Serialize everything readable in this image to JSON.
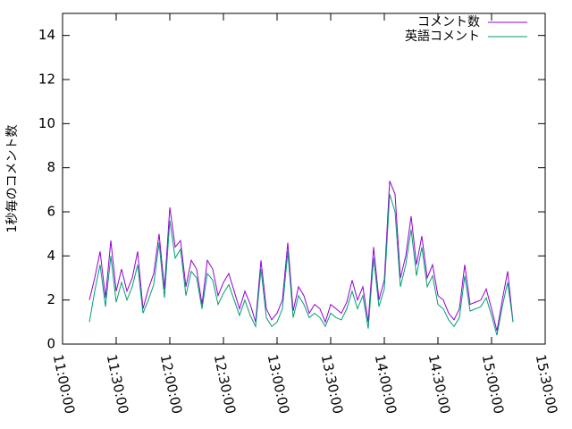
{
  "chart_data": {
    "type": "line",
    "y_label": "1秒毎のコメント数",
    "xlim": [
      "11:00:00",
      "15:30:00"
    ],
    "xticks": [
      "11:00:00",
      "11:30:00",
      "12:00:00",
      "12:30:00",
      "13:00:00",
      "13:30:00",
      "14:00:00",
      "14:30:00",
      "15:00:00",
      "15:30:00"
    ],
    "ylim": [
      0,
      15
    ],
    "yticks": [
      0,
      2,
      4,
      6,
      8,
      10,
      12,
      14
    ],
    "grid": false,
    "legend": "top-right",
    "x": [
      "11:15:00",
      "11:18:00",
      "11:21:00",
      "11:24:00",
      "11:27:00",
      "11:30:00",
      "11:33:00",
      "11:36:00",
      "11:39:00",
      "11:42:00",
      "11:45:00",
      "11:48:00",
      "11:51:00",
      "11:54:00",
      "11:57:00",
      "12:00:00",
      "12:03:00",
      "12:06:00",
      "12:09:00",
      "12:12:00",
      "12:15:00",
      "12:18:00",
      "12:21:00",
      "12:24:00",
      "12:27:00",
      "12:30:00",
      "12:33:00",
      "12:36:00",
      "12:39:00",
      "12:42:00",
      "12:45:00",
      "12:48:00",
      "12:51:00",
      "12:54:00",
      "12:57:00",
      "13:00:00",
      "13:03:00",
      "13:06:00",
      "13:09:00",
      "13:12:00",
      "13:15:00",
      "13:18:00",
      "13:21:00",
      "13:24:00",
      "13:27:00",
      "13:30:00",
      "13:33:00",
      "13:36:00",
      "13:39:00",
      "13:42:00",
      "13:45:00",
      "13:48:00",
      "13:51:00",
      "13:54:00",
      "13:57:00",
      "14:00:00",
      "14:03:00",
      "14:06:00",
      "14:09:00",
      "14:12:00",
      "14:15:00",
      "14:18:00",
      "14:21:00",
      "14:24:00",
      "14:27:00",
      "14:30:00",
      "14:33:00",
      "14:36:00",
      "14:39:00",
      "14:42:00",
      "14:45:00",
      "14:48:00",
      "14:51:00",
      "14:54:00",
      "14:57:00",
      "15:00:00",
      "15:03:00",
      "15:06:00",
      "15:09:00",
      "15:12:00"
    ],
    "series": [
      {
        "name": "コメント数",
        "color": "#9400d3",
        "values": [
          2.0,
          3.0,
          4.2,
          2.1,
          4.7,
          2.4,
          3.4,
          2.4,
          3.0,
          4.2,
          1.6,
          2.5,
          3.2,
          5.0,
          2.5,
          6.2,
          4.4,
          4.7,
          2.6,
          3.8,
          3.4,
          1.8,
          3.8,
          3.4,
          2.2,
          2.8,
          3.2,
          2.4,
          1.6,
          2.4,
          1.8,
          1.0,
          3.8,
          1.6,
          1.1,
          1.4,
          2.0,
          4.6,
          1.5,
          2.6,
          2.2,
          1.4,
          1.8,
          1.6,
          1.0,
          1.8,
          1.6,
          1.4,
          1.9,
          2.9,
          2.0,
          2.6,
          1.0,
          4.4,
          2.0,
          2.9,
          7.4,
          6.8,
          3.0,
          4.0,
          5.8,
          3.6,
          4.9,
          3.0,
          3.6,
          2.2,
          2.0,
          1.4,
          1.1,
          1.6,
          3.6,
          1.8,
          1.9,
          2.0,
          2.5,
          1.6,
          0.6,
          2.0,
          3.3,
          1.0
        ]
      },
      {
        "name": "英語コメント",
        "color": "#009e73",
        "values": [
          1.0,
          2.4,
          3.6,
          1.7,
          4.0,
          1.9,
          2.8,
          2.0,
          2.6,
          3.6,
          1.4,
          2.0,
          2.7,
          4.6,
          2.1,
          5.6,
          3.9,
          4.3,
          2.2,
          3.3,
          3.0,
          1.6,
          3.2,
          2.9,
          1.8,
          2.3,
          2.7,
          2.0,
          1.3,
          2.0,
          1.3,
          0.8,
          3.4,
          1.2,
          0.8,
          1.0,
          1.6,
          4.2,
          1.2,
          2.2,
          1.8,
          1.2,
          1.4,
          1.2,
          0.8,
          1.4,
          1.2,
          1.1,
          1.6,
          2.4,
          1.6,
          2.2,
          0.7,
          3.9,
          1.7,
          2.5,
          6.8,
          6.0,
          2.6,
          3.6,
          5.2,
          3.1,
          4.4,
          2.6,
          3.1,
          1.8,
          1.6,
          1.1,
          0.8,
          1.2,
          3.1,
          1.5,
          1.6,
          1.7,
          2.1,
          1.3,
          0.4,
          1.7,
          2.8,
          1.0
        ]
      }
    ]
  }
}
